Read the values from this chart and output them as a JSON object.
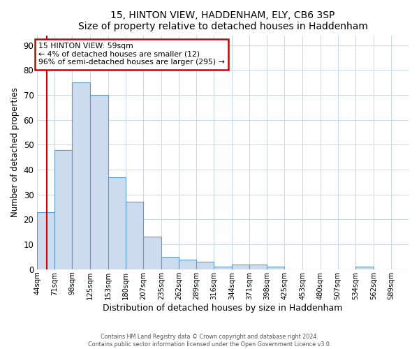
{
  "title": "15, HINTON VIEW, HADDENHAM, ELY, CB6 3SP",
  "subtitle": "Size of property relative to detached houses in Haddenham",
  "xlabel": "Distribution of detached houses by size in Haddenham",
  "ylabel": "Number of detached properties",
  "bar_values": [
    23,
    48,
    75,
    70,
    37,
    27,
    13,
    5,
    4,
    3,
    1,
    2,
    2,
    1,
    0,
    0,
    0,
    0,
    1,
    0,
    0
  ],
  "bar_labels": [
    "44sqm",
    "71sqm",
    "98sqm",
    "125sqm",
    "153sqm",
    "180sqm",
    "207sqm",
    "235sqm",
    "262sqm",
    "289sqm",
    "316sqm",
    "344sqm",
    "371sqm",
    "398sqm",
    "425sqm",
    "453sqm",
    "480sqm",
    "507sqm",
    "534sqm",
    "562sqm",
    "589sqm"
  ],
  "bar_color": "#ccdcee",
  "bar_edge_color": "#5b9bd5",
  "property_line_x": 59,
  "property_line_label": "15 HINTON VIEW: 59sqm",
  "annotation_line1": "← 4% of detached houses are smaller (12)",
  "annotation_line2": "96% of semi-detached houses are larger (295) →",
  "annotation_box_color": "#ffffff",
  "annotation_box_edge": "#cc0000",
  "ylim": [
    0,
    94
  ],
  "yticks": [
    0,
    10,
    20,
    30,
    40,
    50,
    60,
    70,
    80,
    90
  ],
  "line_color": "#cc0000",
  "footer1": "Contains HM Land Registry data © Crown copyright and database right 2024.",
  "footer2": "Contains public sector information licensed under the Open Government Licence v3.0.",
  "bin_edges": [
    44,
    71,
    98,
    125,
    153,
    180,
    207,
    235,
    262,
    289,
    316,
    344,
    371,
    398,
    425,
    453,
    480,
    507,
    534,
    562,
    589,
    616
  ],
  "fig_bg": "#ffffff",
  "ax_bg": "#ffffff",
  "grid_color": "#c5d8ee",
  "title_fontsize": 10,
  "subtitle_fontsize": 9
}
